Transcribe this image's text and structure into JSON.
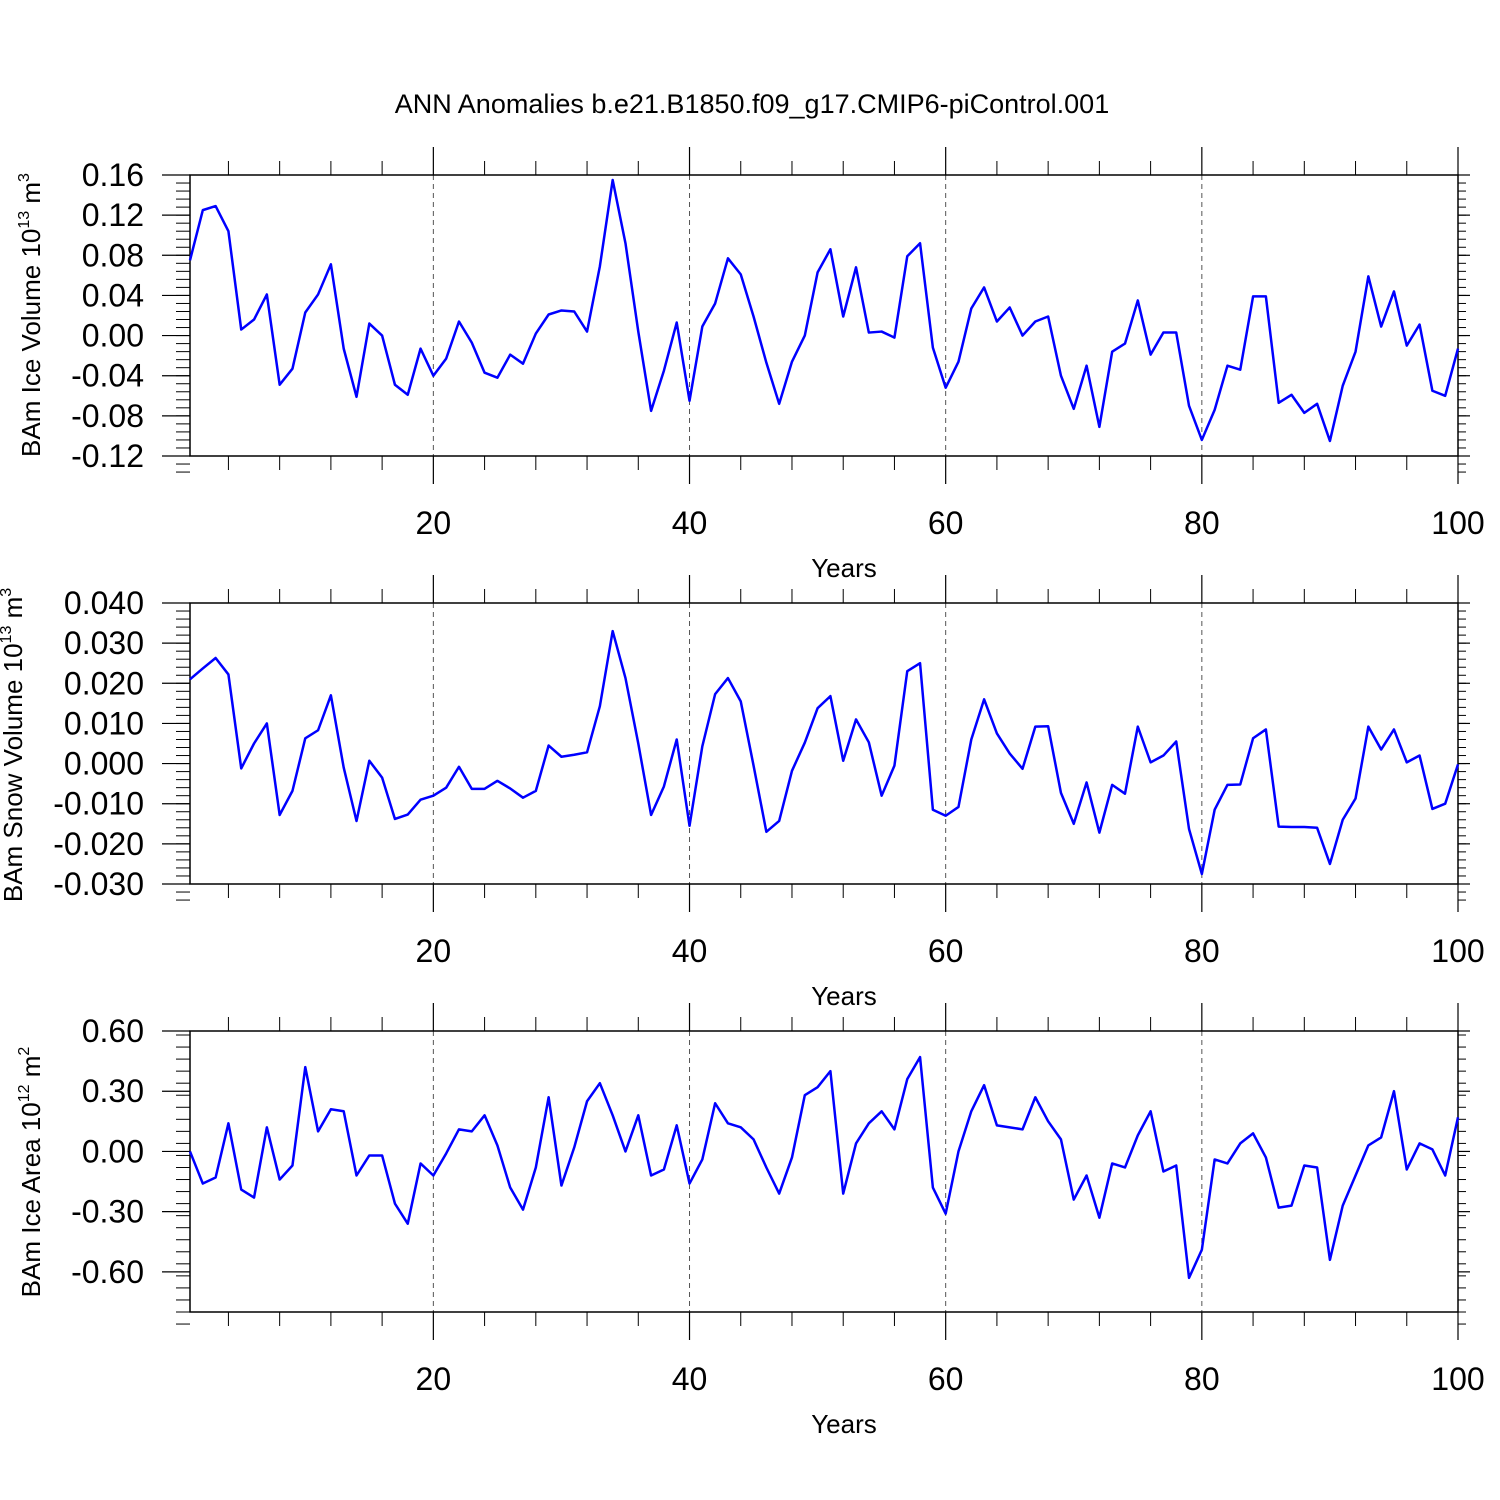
{
  "title": "ANN Anomalies b.e21.B1850.f09_g17.CMIP6-piControl.001",
  "colors": {
    "series": "#0000ff",
    "axis": "#000000",
    "grid": "#555555"
  },
  "chart_data": [
    {
      "type": "line",
      "title": "ANN Anomalies b.e21.B1850.f09_g17.CMIP6-piControl.001",
      "xlabel": "Years",
      "ylabel": {
        "text": "BAm Ice Volume 10",
        "exp": "13",
        "unit": " m",
        "unit_exp": "3"
      },
      "xlim": [
        1,
        100
      ],
      "ylim": [
        -0.12,
        0.16
      ],
      "xticks": [
        20,
        40,
        60,
        80,
        100
      ],
      "yticks": [
        -0.12,
        -0.08,
        -0.04,
        0.0,
        0.04,
        0.08,
        0.12,
        0.16
      ],
      "ytick_labels": [
        "-0.12",
        "-0.08",
        "-0.04",
        "0.00",
        "0.04",
        "0.08",
        "0.12",
        "0.16"
      ],
      "grid": "vertical dashed at major x ticks",
      "x": [
        1,
        2,
        3,
        4,
        5,
        6,
        7,
        8,
        9,
        10,
        11,
        12,
        13,
        14,
        15,
        16,
        17,
        18,
        19,
        20,
        21,
        22,
        23,
        24,
        25,
        26,
        27,
        28,
        29,
        30,
        31,
        32,
        33,
        34,
        35,
        36,
        37,
        38,
        39,
        40,
        41,
        42,
        43,
        44,
        45,
        46,
        47,
        48,
        49,
        50,
        51,
        52,
        53,
        54,
        55,
        56,
        57,
        58,
        59,
        60,
        61,
        62,
        63,
        64,
        65,
        66,
        67,
        68,
        69,
        70,
        71,
        72,
        73,
        74,
        75,
        76,
        77,
        78,
        79,
        80,
        81,
        82,
        83,
        84,
        85,
        86,
        87,
        88,
        89,
        90,
        91,
        92,
        93,
        94,
        95,
        96,
        97,
        98,
        99,
        100
      ],
      "series": [
        {
          "values": [
            0.075,
            0.125,
            0.129,
            0.104,
            0.006,
            0.016,
            0.041,
            -0.049,
            -0.033,
            0.023,
            0.041,
            0.071,
            -0.013,
            -0.061,
            0.012,
            0.0,
            -0.049,
            -0.059,
            -0.013,
            -0.04,
            -0.023,
            0.014,
            -0.007,
            -0.037,
            -0.042,
            -0.019,
            -0.028,
            0.002,
            0.021,
            0.025,
            0.024,
            0.004,
            0.069,
            0.155,
            0.092,
            0.004,
            -0.075,
            -0.035,
            0.013,
            -0.065,
            0.009,
            0.032,
            0.077,
            0.061,
            0.019,
            -0.027,
            -0.068,
            -0.026,
            0.0,
            0.063,
            0.086,
            0.019,
            0.068,
            0.003,
            0.004,
            -0.002,
            0.079,
            0.092,
            -0.012,
            -0.052,
            -0.026,
            0.027,
            0.048,
            0.014,
            0.028,
            0.0,
            0.014,
            0.019,
            -0.04,
            -0.073,
            -0.03,
            -0.091,
            -0.016,
            -0.008,
            0.035,
            -0.019,
            0.003,
            0.003,
            -0.07,
            -0.104,
            -0.074,
            -0.03,
            -0.034,
            0.039,
            0.039,
            -0.067,
            -0.059,
            -0.077,
            -0.068,
            -0.105,
            -0.05,
            -0.016,
            0.059,
            0.009,
            0.044,
            -0.01,
            0.011,
            -0.055,
            -0.06,
            -0.013
          ]
        }
      ]
    },
    {
      "type": "line",
      "xlabel": "Years",
      "ylabel": {
        "text": "BAm Snow Volume 10",
        "exp": "13",
        "unit": " m",
        "unit_exp": "3"
      },
      "xlim": [
        1,
        100
      ],
      "ylim": [
        -0.03,
        0.04
      ],
      "xticks": [
        20,
        40,
        60,
        80,
        100
      ],
      "yticks": [
        -0.03,
        -0.02,
        -0.01,
        0.0,
        0.01,
        0.02,
        0.03,
        0.04
      ],
      "ytick_labels": [
        "-0.030",
        "-0.020",
        "-0.010",
        "0.000",
        "0.010",
        "0.020",
        "0.030",
        "0.040"
      ],
      "grid": "vertical dashed at major x ticks",
      "x": [
        1,
        2,
        3,
        4,
        5,
        6,
        7,
        8,
        9,
        10,
        11,
        12,
        13,
        14,
        15,
        16,
        17,
        18,
        19,
        20,
        21,
        22,
        23,
        24,
        25,
        26,
        27,
        28,
        29,
        30,
        31,
        32,
        33,
        34,
        35,
        36,
        37,
        38,
        39,
        40,
        41,
        42,
        43,
        44,
        45,
        46,
        47,
        48,
        49,
        50,
        51,
        52,
        53,
        54,
        55,
        56,
        57,
        58,
        59,
        60,
        61,
        62,
        63,
        64,
        65,
        66,
        67,
        68,
        69,
        70,
        71,
        72,
        73,
        74,
        75,
        76,
        77,
        78,
        79,
        80,
        81,
        82,
        83,
        84,
        85,
        86,
        87,
        88,
        89,
        90,
        91,
        92,
        93,
        94,
        95,
        96,
        97,
        98,
        99,
        100
      ],
      "series": [
        {
          "values": [
            0.021,
            0.0237,
            0.0263,
            0.0222,
            -0.0012,
            0.005,
            0.01,
            -0.0128,
            -0.0068,
            0.0063,
            0.0083,
            0.017,
            -0.001,
            -0.0143,
            0.0007,
            -0.0035,
            -0.0138,
            -0.0127,
            -0.009,
            -0.008,
            -0.006,
            -0.0008,
            -0.0063,
            -0.0063,
            -0.0043,
            -0.0062,
            -0.0085,
            -0.0068,
            0.0045,
            0.0017,
            0.0022,
            0.0028,
            0.0143,
            0.033,
            0.0213,
            0.005,
            -0.0128,
            -0.0057,
            0.006,
            -0.0155,
            0.0043,
            0.0173,
            0.0213,
            0.0155,
            -0.0005,
            -0.017,
            -0.0143,
            -0.0018,
            0.0052,
            0.0138,
            0.0168,
            0.0007,
            0.011,
            0.0053,
            -0.008,
            -0.0005,
            0.023,
            0.025,
            -0.0115,
            -0.013,
            -0.0108,
            0.006,
            0.016,
            0.0075,
            0.0025,
            -0.0013,
            0.0092,
            0.0093,
            -0.0073,
            -0.015,
            -0.0047,
            -0.0172,
            -0.0053,
            -0.0075,
            0.0092,
            0.0003,
            0.002,
            0.0055,
            -0.0163,
            -0.0275,
            -0.0115,
            -0.0053,
            -0.0052,
            0.0063,
            0.0085,
            -0.0157,
            -0.0158,
            -0.0158,
            -0.016,
            -0.025,
            -0.014,
            -0.0087,
            0.0092,
            0.0035,
            0.0085,
            0.0003,
            0.002,
            -0.0113,
            -0.01,
            -0.0002
          ]
        }
      ]
    },
    {
      "type": "line",
      "xlabel": "Years",
      "ylabel": {
        "text": "BAm Ice Area 10",
        "exp": "12",
        "unit": " m",
        "unit_exp": "2"
      },
      "xlim": [
        1,
        100
      ],
      "ylim": [
        -0.8,
        0.6
      ],
      "xticks": [
        20,
        40,
        60,
        80,
        100
      ],
      "yticks": [
        -0.6,
        -0.3,
        0.0,
        0.3,
        0.6
      ],
      "ytick_labels": [
        "-0.60",
        "-0.30",
        "0.00",
        "0.30",
        "0.60"
      ],
      "grid": "vertical dashed at major x ticks",
      "x": [
        1,
        2,
        3,
        4,
        5,
        6,
        7,
        8,
        9,
        10,
        11,
        12,
        13,
        14,
        15,
        16,
        17,
        18,
        19,
        20,
        21,
        22,
        23,
        24,
        25,
        26,
        27,
        28,
        29,
        30,
        31,
        32,
        33,
        34,
        35,
        36,
        37,
        38,
        39,
        40,
        41,
        42,
        43,
        44,
        45,
        46,
        47,
        48,
        49,
        50,
        51,
        52,
        53,
        54,
        55,
        56,
        57,
        58,
        59,
        60,
        61,
        62,
        63,
        64,
        65,
        66,
        67,
        68,
        69,
        70,
        71,
        72,
        73,
        74,
        75,
        76,
        77,
        78,
        79,
        80,
        81,
        82,
        83,
        84,
        85,
        86,
        87,
        88,
        89,
        90,
        91,
        92,
        93,
        94,
        95,
        96,
        97,
        98,
        99,
        100
      ],
      "series": [
        {
          "values": [
            0.0,
            -0.16,
            -0.13,
            0.14,
            -0.19,
            -0.23,
            0.12,
            -0.14,
            -0.07,
            0.42,
            0.1,
            0.21,
            0.2,
            -0.12,
            -0.02,
            -0.02,
            -0.26,
            -0.36,
            -0.06,
            -0.12,
            -0.01,
            0.11,
            0.1,
            0.18,
            0.03,
            -0.18,
            -0.29,
            -0.08,
            0.27,
            -0.17,
            0.02,
            0.25,
            0.34,
            0.18,
            0.0,
            0.18,
            -0.12,
            -0.09,
            0.13,
            -0.16,
            -0.04,
            0.24,
            0.14,
            0.12,
            0.06,
            -0.08,
            -0.21,
            -0.03,
            0.28,
            0.32,
            0.4,
            -0.21,
            0.04,
            0.14,
            0.2,
            0.11,
            0.36,
            0.47,
            -0.18,
            -0.31,
            0.0,
            0.2,
            0.33,
            0.13,
            0.12,
            0.11,
            0.27,
            0.15,
            0.06,
            -0.24,
            -0.12,
            -0.33,
            -0.06,
            -0.08,
            0.08,
            0.2,
            -0.1,
            -0.07,
            -0.63,
            -0.49,
            -0.04,
            -0.06,
            0.04,
            0.09,
            -0.03,
            -0.28,
            -0.27,
            -0.07,
            -0.08,
            -0.54,
            -0.27,
            -0.12,
            0.03,
            0.07,
            0.3,
            -0.09,
            0.04,
            0.01,
            -0.12,
            0.17
          ]
        }
      ]
    }
  ]
}
